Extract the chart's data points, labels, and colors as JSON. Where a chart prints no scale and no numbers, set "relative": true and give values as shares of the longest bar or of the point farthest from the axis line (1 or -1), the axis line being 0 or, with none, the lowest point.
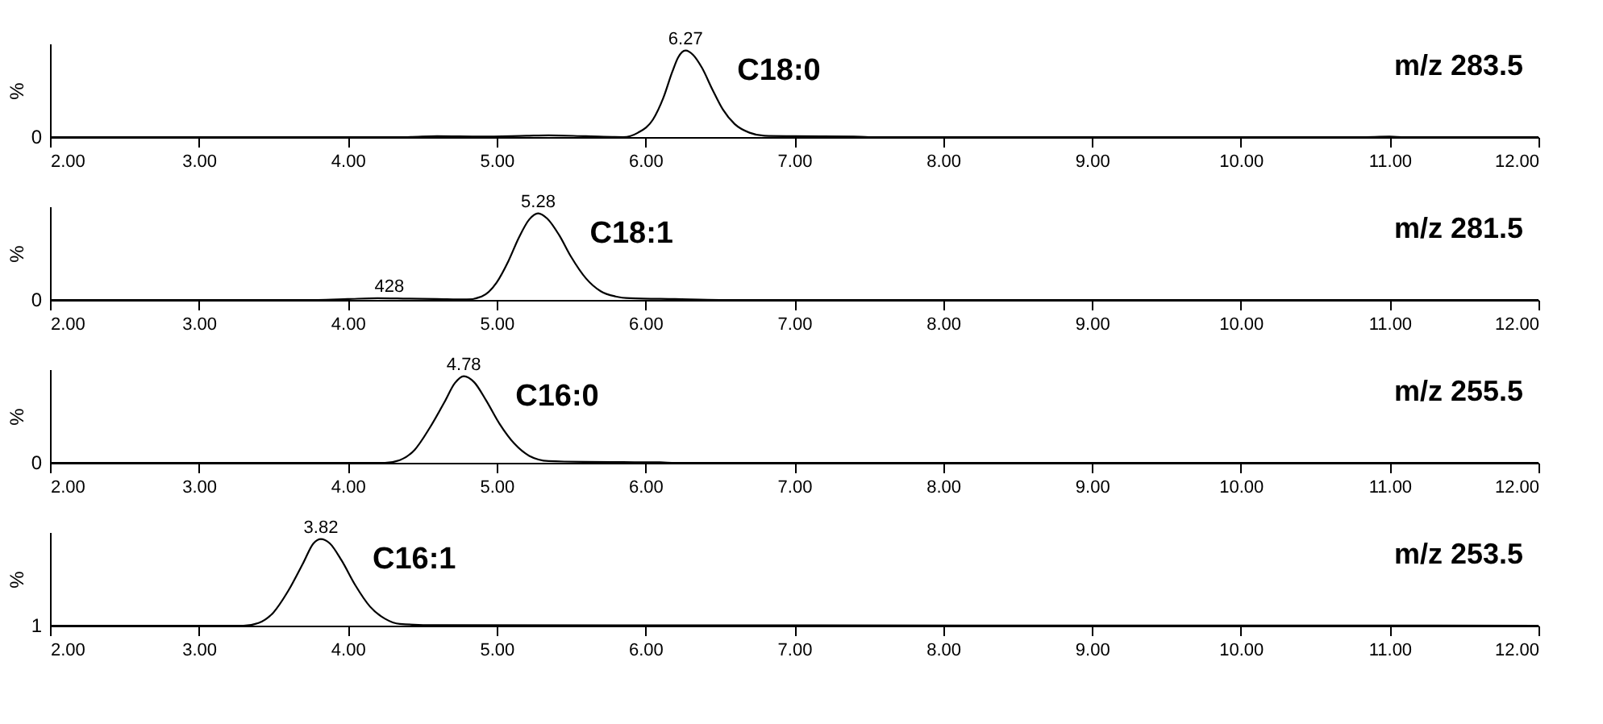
{
  "chart_data": [
    {
      "type": "line",
      "title": "m/z 283.5",
      "ylabel": "%",
      "relative": true,
      "marker": "none",
      "xlim": [
        2,
        12
      ],
      "xticks": [
        {
          "value": 2,
          "label": "2.00"
        },
        {
          "value": 3,
          "label": "3.00"
        },
        {
          "value": 4,
          "label": "4.00"
        },
        {
          "value": 5,
          "label": "5.00"
        },
        {
          "value": 6,
          "label": "6.00"
        },
        {
          "value": 7,
          "label": "7.00"
        },
        {
          "value": 8,
          "label": "8.00"
        },
        {
          "value": 9,
          "label": "9.00"
        },
        {
          "value": 10,
          "label": "10.00"
        },
        {
          "value": 11,
          "label": "11.00"
        },
        {
          "value": 12,
          "label": "12.00"
        }
      ],
      "x": [
        2.0,
        4.4,
        4.6,
        4.9,
        5.2,
        5.35,
        5.6,
        5.85,
        5.95,
        6.05,
        6.12,
        6.18,
        6.22,
        6.27,
        6.32,
        6.38,
        6.45,
        6.52,
        6.6,
        6.7,
        6.8,
        7.0,
        7.4,
        7.5,
        10.8,
        11.0,
        11.1,
        12.0
      ],
      "series": [
        {
          "name": "C18:0",
          "color": "#000000",
          "values": [
            0,
            0,
            0.01,
            0.005,
            0.015,
            0.02,
            0.01,
            0,
            0.05,
            0.2,
            0.45,
            0.75,
            0.92,
            1,
            0.95,
            0.8,
            0.55,
            0.32,
            0.15,
            0.05,
            0.015,
            0.01,
            0.005,
            0,
            0,
            0.005,
            0,
            0
          ]
        }
      ],
      "annotations": [
        "0",
        {
          "text": "6.27",
          "x": 6.27,
          "y": 1
        }
      ]
    },
    {
      "type": "line",
      "title": "m/z 281.5",
      "ylabel": "%",
      "relative": true,
      "marker": "none",
      "xlim": [
        2,
        12
      ],
      "xticks": [
        {
          "value": 2,
          "label": "2.00"
        },
        {
          "value": 3,
          "label": "3.00"
        },
        {
          "value": 4,
          "label": "4.00"
        },
        {
          "value": 5,
          "label": "5.00"
        },
        {
          "value": 6,
          "label": "6.00"
        },
        {
          "value": 7,
          "label": "7.00"
        },
        {
          "value": 8,
          "label": "8.00"
        },
        {
          "value": 9,
          "label": "9.00"
        },
        {
          "value": 10,
          "label": "10.00"
        },
        {
          "value": 11,
          "label": "11.00"
        },
        {
          "value": 12,
          "label": "12.00"
        }
      ],
      "x": [
        2.0,
        3.8,
        4.0,
        4.2,
        4.4,
        4.6,
        4.8,
        4.9,
        5.0,
        5.08,
        5.15,
        5.22,
        5.28,
        5.34,
        5.42,
        5.5,
        5.6,
        5.7,
        5.8,
        5.9,
        6.2,
        6.5,
        12.0
      ],
      "series": [
        {
          "name": "C18:1",
          "color": "#000000",
          "values": [
            0,
            0,
            0.01,
            0.02,
            0.015,
            0.01,
            0.005,
            0.04,
            0.2,
            0.45,
            0.72,
            0.93,
            1,
            0.94,
            0.75,
            0.5,
            0.25,
            0.1,
            0.04,
            0.02,
            0.01,
            0,
            0
          ]
        }
      ],
      "annotations": [
        "0",
        {
          "text": "5.28",
          "x": 5.28,
          "y": 1
        },
        {
          "text": "428",
          "x": 4.28,
          "y": 0.02
        }
      ]
    },
    {
      "type": "line",
      "title": "m/z 255.5",
      "ylabel": "%",
      "relative": true,
      "marker": "none",
      "xlim": [
        2,
        12
      ],
      "xticks": [
        {
          "value": 2,
          "label": "2.00"
        },
        {
          "value": 3,
          "label": "3.00"
        },
        {
          "value": 4,
          "label": "4.00"
        },
        {
          "value": 5,
          "label": "5.00"
        },
        {
          "value": 6,
          "label": "6.00"
        },
        {
          "value": 7,
          "label": "7.00"
        },
        {
          "value": 8,
          "label": "8.00"
        },
        {
          "value": 9,
          "label": "9.00"
        },
        {
          "value": 10,
          "label": "10.00"
        },
        {
          "value": 11,
          "label": "11.00"
        },
        {
          "value": 12,
          "label": "12.00"
        }
      ],
      "x": [
        2.0,
        4.25,
        4.35,
        4.45,
        4.55,
        4.65,
        4.72,
        4.78,
        4.85,
        4.93,
        5.02,
        5.12,
        5.22,
        5.35,
        5.6,
        6.1,
        6.2,
        12.0
      ],
      "series": [
        {
          "name": "C16:0",
          "color": "#000000",
          "values": [
            0,
            0,
            0.03,
            0.15,
            0.4,
            0.7,
            0.92,
            1,
            0.93,
            0.72,
            0.45,
            0.22,
            0.08,
            0.02,
            0.01,
            0.005,
            0,
            0
          ]
        }
      ],
      "annotations": [
        "0",
        {
          "text": "4.78",
          "x": 4.78,
          "y": 1
        }
      ]
    },
    {
      "type": "line",
      "title": "m/z 253.5",
      "ylabel": "%",
      "relative": true,
      "marker": "none",
      "xlim": [
        2,
        12
      ],
      "xticks": [
        {
          "value": 2,
          "label": "2.00"
        },
        {
          "value": 3,
          "label": "3.00"
        },
        {
          "value": 4,
          "label": "4.00"
        },
        {
          "value": 5,
          "label": "5.00"
        },
        {
          "value": 6,
          "label": "6.00"
        },
        {
          "value": 7,
          "label": "7.00"
        },
        {
          "value": 8,
          "label": "8.00"
        },
        {
          "value": 9,
          "label": "9.00"
        },
        {
          "value": 10,
          "label": "10.00"
        },
        {
          "value": 11,
          "label": "11.00"
        },
        {
          "value": 12,
          "label": "12.00"
        }
      ],
      "x": [
        2.0,
        3.3,
        3.4,
        3.5,
        3.6,
        3.7,
        3.77,
        3.82,
        3.88,
        3.96,
        4.05,
        4.15,
        4.25,
        4.35,
        4.6,
        12.0
      ],
      "series": [
        {
          "name": "C16:1",
          "color": "#000000",
          "values": [
            0,
            0,
            0.03,
            0.15,
            0.4,
            0.72,
            0.95,
            1,
            0.95,
            0.75,
            0.47,
            0.22,
            0.08,
            0.02,
            0.005,
            0
          ]
        }
      ],
      "annotations": [
        "1",
        {
          "text": "3.82",
          "x": 3.82,
          "y": 1
        }
      ]
    }
  ]
}
